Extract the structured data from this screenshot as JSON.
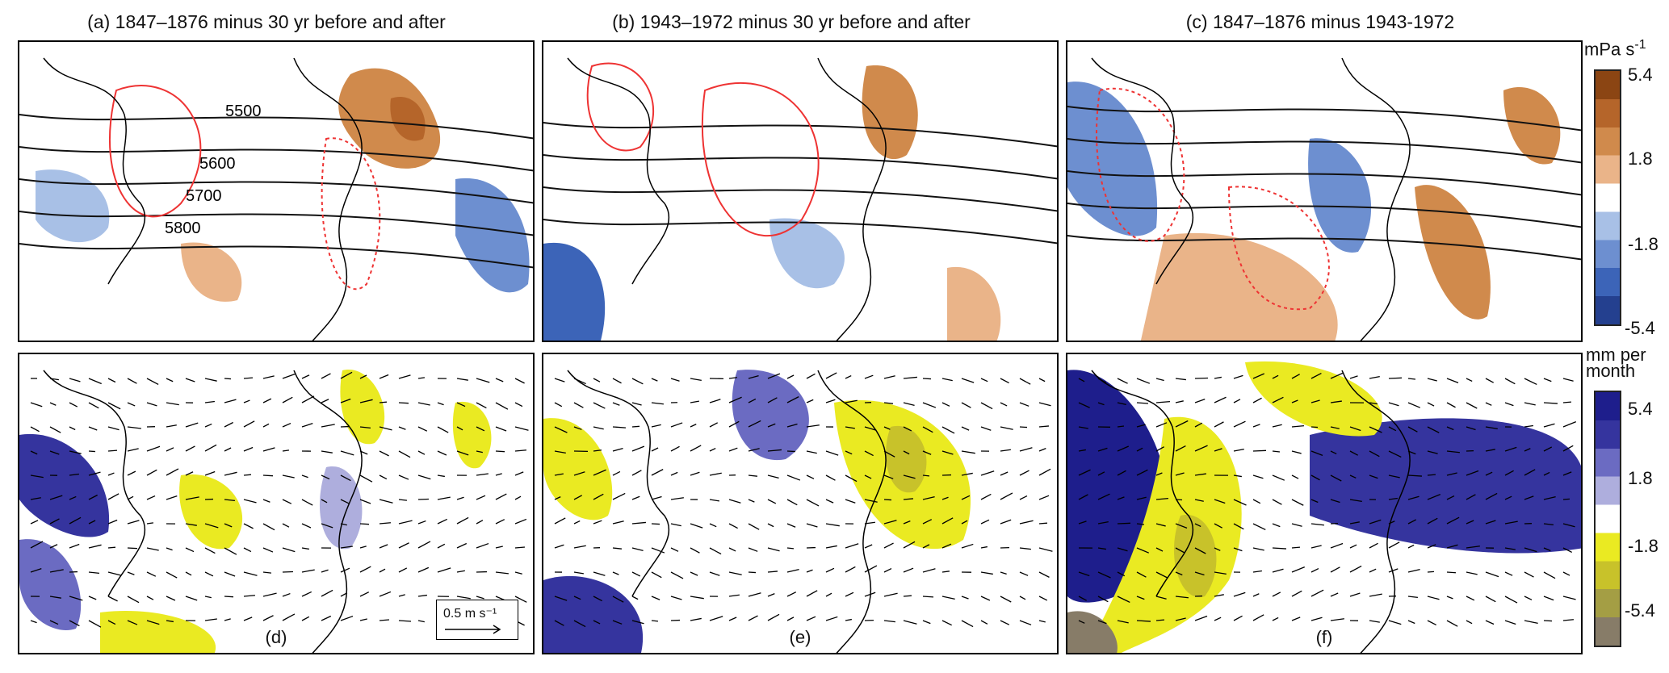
{
  "panels": {
    "a": {
      "title": "(a) 1847–1876 minus 30 yr before and after"
    },
    "b": {
      "title": "(b) 1943–1972 minus 30 yr before and after"
    },
    "c": {
      "title": "(c) 1847–1876 minus 1943-1972"
    },
    "d": {
      "label": "(d)"
    },
    "e": {
      "label": "(e)"
    },
    "f": {
      "label": "(f)"
    }
  },
  "contour_labels": [
    "5500",
    "5600",
    "5700",
    "5800"
  ],
  "vector_scale": {
    "label": "0.5 m s⁻¹"
  },
  "colorbar_top": {
    "unit": "mPa s",
    "unit_exp": "-1",
    "ticks": [
      "5.4",
      "1.8",
      "-1.8",
      "-5.4"
    ],
    "colors": [
      "#8b4513",
      "#b5652a",
      "#d08a4c",
      "#eab489",
      "#ffffff",
      "#a8c0e6",
      "#6d8fd0",
      "#3c64b8",
      "#24408f"
    ]
  },
  "colorbar_bottom": {
    "unit_line1": "mm per",
    "unit_line2": "month",
    "ticks": [
      "5.4",
      "1.8",
      "-1.8",
      "-5.4"
    ],
    "colors": [
      "#1e1e8c",
      "#35349e",
      "#6b6bc2",
      "#aeaedd",
      "#ffffff",
      "#eaea22",
      "#c8c22a",
      "#a49e44",
      "#877c68"
    ]
  },
  "chart_data": [
    {
      "type": "heatmap",
      "title": "(a) 1847–1876 minus 30 yr before and after",
      "contours": [
        "5500",
        "5600",
        "5700",
        "5800"
      ],
      "colorbar_unit": "mPa s-1",
      "colorbar_ticks": [
        5.4,
        1.8,
        -1.8,
        -5.4
      ]
    },
    {
      "type": "heatmap",
      "title": "(b) 1943–1972 minus 30 yr before and after",
      "colorbar_unit": "mPa s-1",
      "colorbar_ticks": [
        5.4,
        1.8,
        -1.8,
        -5.4
      ]
    },
    {
      "type": "heatmap",
      "title": "(c) 1847–1876 minus 1943-1972",
      "colorbar_unit": "mPa s-1",
      "colorbar_ticks": [
        5.4,
        1.8,
        -1.8,
        -5.4
      ]
    },
    {
      "type": "heatmap",
      "title": "(d)",
      "colorbar_unit": "mm per month",
      "colorbar_ticks": [
        5.4,
        1.8,
        -1.8,
        -5.4
      ],
      "vector_scale": "0.5 m s-1"
    },
    {
      "type": "heatmap",
      "title": "(e)",
      "colorbar_unit": "mm per month",
      "colorbar_ticks": [
        5.4,
        1.8,
        -1.8,
        -5.4
      ]
    },
    {
      "type": "heatmap",
      "title": "(f)",
      "colorbar_unit": "mm per month",
      "colorbar_ticks": [
        5.4,
        1.8,
        -1.8,
        -5.4
      ]
    }
  ]
}
